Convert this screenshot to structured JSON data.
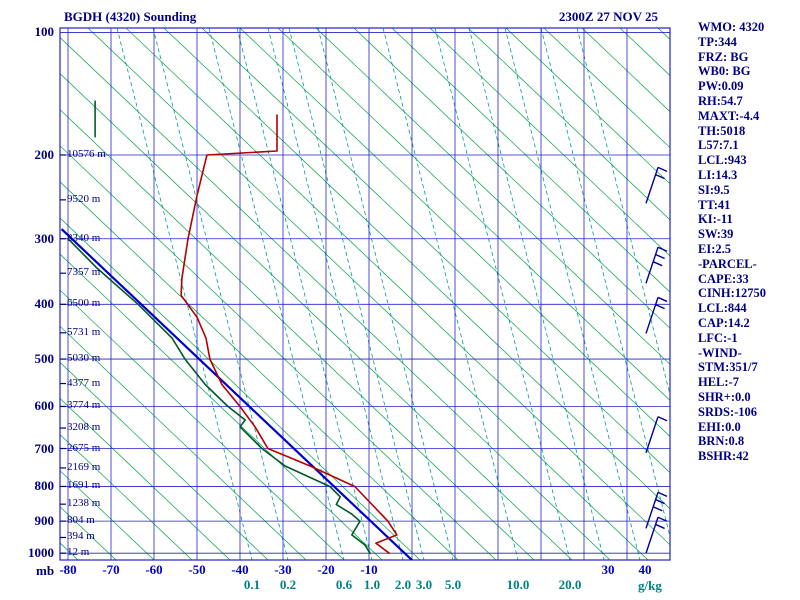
{
  "title": "BGDH (4320) Sounding",
  "timestamp": "2300Z 27 NOV 25",
  "stats_panel": {
    "lines": [
      "WMO: 4320",
      "TP:344",
      "FRZ: BG",
      "WB0: BG",
      "PW:0.09",
      "RH:54.7",
      "MAXT:-4.4",
      "TH:5018",
      "L57:7.1",
      "LCL:943",
      "LI:14.3",
      "SI:9.5",
      "TT:41",
      "KI:-11",
      "SW:39",
      "EI:2.5",
      "-PARCEL-",
      "CAPE:33",
      "CINH:12750",
      "LCL:844",
      "CAP:14.2",
      "LFC:-1",
      "-WIND-",
      "STM:351/7",
      "HEL:-7",
      "SHR+:0.0",
      "SRDS:-106",
      "EHI:0.0",
      "BRN:0.8",
      "BSHR:42"
    ]
  },
  "chart_data": {
    "type": "line",
    "diagram": "stuve-sounding",
    "pressure_axis": {
      "unit": "mb",
      "ticks": [
        100,
        200,
        300,
        400,
        500,
        600,
        700,
        800,
        900,
        1000
      ],
      "range": [
        100,
        1000
      ]
    },
    "temperature_axis": {
      "ticks": [
        -80,
        -70,
        -60,
        -50,
        -40,
        -30,
        -20,
        -10,
        30,
        40
      ]
    },
    "mixing_ratio_axis": {
      "unit": "g/kg",
      "labels": [
        "0.1",
        "0.2",
        "0.6",
        "1.0",
        "2.0",
        "3.0",
        "5.0",
        "10.0",
        "20.0"
      ]
    },
    "height_labels": [
      {
        "p": 200,
        "label": "10576 m"
      },
      {
        "p": 250,
        "label": "9520 m"
      },
      {
        "p": 300,
        "label": "8340 m"
      },
      {
        "p": 350,
        "label": "7357 m"
      },
      {
        "p": 400,
        "label": "6500 m"
      },
      {
        "p": 450,
        "label": "5731 m"
      },
      {
        "p": 500,
        "label": "5030 m"
      },
      {
        "p": 550,
        "label": "4377 m"
      },
      {
        "p": 600,
        "label": "3774 m"
      },
      {
        "p": 650,
        "label": "3208 m"
      },
      {
        "p": 700,
        "label": "2675 m"
      },
      {
        "p": 750,
        "label": "2169 m"
      },
      {
        "p": 800,
        "label": "1691 m"
      },
      {
        "p": 850,
        "label": "1238 m"
      },
      {
        "p": 900,
        "label": "804 m"
      },
      {
        "p": 950,
        "label": "394 m"
      },
      {
        "p": 1000,
        "label": "12 m"
      }
    ],
    "temperature_trace": {
      "color": "#b40000",
      "points": [
        {
          "p": 162,
          "t": -31.4
        },
        {
          "p": 196,
          "t": -31.4
        },
        {
          "p": 200,
          "t": -47.7
        },
        {
          "p": 245,
          "t": -50.0
        },
        {
          "p": 300,
          "t": -52.1
        },
        {
          "p": 358,
          "t": -53.5
        },
        {
          "p": 385,
          "t": -53.7
        },
        {
          "p": 422,
          "t": -50.0
        },
        {
          "p": 460,
          "t": -47.9
        },
        {
          "p": 500,
          "t": -47.0
        },
        {
          "p": 552,
          "t": -44.2
        },
        {
          "p": 600,
          "t": -40.0
        },
        {
          "p": 647,
          "t": -36.5
        },
        {
          "p": 700,
          "t": -33.5
        },
        {
          "p": 745,
          "t": -23.7
        },
        {
          "p": 800,
          "t": -13.3
        },
        {
          "p": 851,
          "t": -9.3
        },
        {
          "p": 900,
          "t": -5.6
        },
        {
          "p": 942,
          "t": -3.5
        },
        {
          "p": 968,
          "t": -8.4
        },
        {
          "p": 1000,
          "t": -5.3
        }
      ]
    },
    "dewpoint_trace": {
      "color": "#005a28",
      "points": [
        {
          "p": 300,
          "t": -80.0
        },
        {
          "p": 342,
          "t": -73.3
        },
        {
          "p": 400,
          "t": -63.7
        },
        {
          "p": 460,
          "t": -55.8
        },
        {
          "p": 500,
          "t": -52.8
        },
        {
          "p": 552,
          "t": -48.1
        },
        {
          "p": 600,
          "t": -42.8
        },
        {
          "p": 631,
          "t": -38.8
        },
        {
          "p": 647,
          "t": -40.0
        },
        {
          "p": 700,
          "t": -34.9
        },
        {
          "p": 745,
          "t": -29.5
        },
        {
          "p": 800,
          "t": -19.1
        },
        {
          "p": 829,
          "t": -16.7
        },
        {
          "p": 851,
          "t": -17.6
        },
        {
          "p": 879,
          "t": -14.0
        },
        {
          "p": 900,
          "t": -12.1
        },
        {
          "p": 942,
          "t": -14.0
        },
        {
          "p": 974,
          "t": -10.9
        },
        {
          "p": 1000,
          "t": -9.8
        }
      ]
    },
    "dewpoint_upper_segment": {
      "color": "#005a28",
      "points": [
        {
          "p": 150,
          "t": -73.7
        },
        {
          "p": 182,
          "t": -73.7
        }
      ]
    },
    "parcel_reference_line": {
      "color": "#0000c8",
      "from": {
        "p": 287,
        "t": -81.5
      },
      "to": {
        "p": 1032,
        "t": 0.7
      }
    },
    "wind_barbs": [
      {
        "p": 233,
        "barbs": 2
      },
      {
        "p": 338,
        "barbs": 3
      },
      {
        "p": 419,
        "barbs": 2
      },
      {
        "p": 666,
        "barbs": 1
      },
      {
        "p": 868,
        "barbs": 3
      },
      {
        "p": 943,
        "barbs": 2
      }
    ],
    "colors": {
      "grid": "#2323c8",
      "dry_adiabat": "#00a040",
      "mixing_ratio": "#009999",
      "axis_text": "#000080",
      "temp_tick_text": "#0000cc",
      "mixing_text": "#008080"
    }
  }
}
